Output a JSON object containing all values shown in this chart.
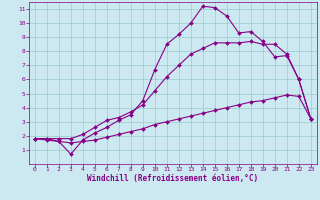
{
  "xlabel": "Windchill (Refroidissement éolien,°C)",
  "xlim": [
    -0.5,
    23.5
  ],
  "ylim": [
    0,
    11.5
  ],
  "xticks": [
    0,
    1,
    2,
    3,
    4,
    5,
    6,
    7,
    8,
    9,
    10,
    11,
    12,
    13,
    14,
    15,
    16,
    17,
    18,
    19,
    20,
    21,
    22,
    23
  ],
  "yticks": [
    1,
    2,
    3,
    4,
    5,
    6,
    7,
    8,
    9,
    10,
    11
  ],
  "background_color": "#cce8f0",
  "line_color": "#880088",
  "grid_color": "#99cccc",
  "curve1_x": [
    0,
    1,
    2,
    3,
    4,
    5,
    6,
    7,
    8,
    9,
    10,
    11,
    12,
    13,
    14,
    15,
    16,
    17,
    18,
    19,
    20,
    21,
    22,
    23
  ],
  "curve1_y": [
    1.8,
    1.7,
    1.6,
    0.7,
    1.7,
    2.2,
    2.6,
    3.1,
    3.5,
    4.5,
    6.7,
    8.5,
    9.2,
    10.0,
    11.2,
    11.1,
    10.5,
    9.3,
    9.4,
    8.7,
    7.6,
    7.7,
    6.0,
    3.2
  ],
  "curve2_x": [
    0,
    1,
    2,
    3,
    4,
    5,
    6,
    7,
    8,
    9,
    10,
    11,
    12,
    13,
    14,
    15,
    16,
    17,
    18,
    19,
    20,
    21,
    22,
    23
  ],
  "curve2_y": [
    1.8,
    1.8,
    1.8,
    1.8,
    2.1,
    2.6,
    3.1,
    3.3,
    3.7,
    4.2,
    5.2,
    6.2,
    7.0,
    7.8,
    8.2,
    8.6,
    8.6,
    8.6,
    8.7,
    8.5,
    8.5,
    7.8,
    6.0,
    3.2
  ],
  "curve3_x": [
    0,
    1,
    2,
    3,
    4,
    5,
    6,
    7,
    8,
    9,
    10,
    11,
    12,
    13,
    14,
    15,
    16,
    17,
    18,
    19,
    20,
    21,
    22,
    23
  ],
  "curve3_y": [
    1.8,
    1.8,
    1.6,
    1.5,
    1.6,
    1.7,
    1.9,
    2.1,
    2.3,
    2.5,
    2.8,
    3.0,
    3.2,
    3.4,
    3.6,
    3.8,
    4.0,
    4.2,
    4.4,
    4.5,
    4.7,
    4.9,
    4.8,
    3.2
  ],
  "marker": "D",
  "markersize": 2.0,
  "linewidth": 0.8,
  "tick_fontsize": 4.5,
  "label_fontsize": 5.5
}
